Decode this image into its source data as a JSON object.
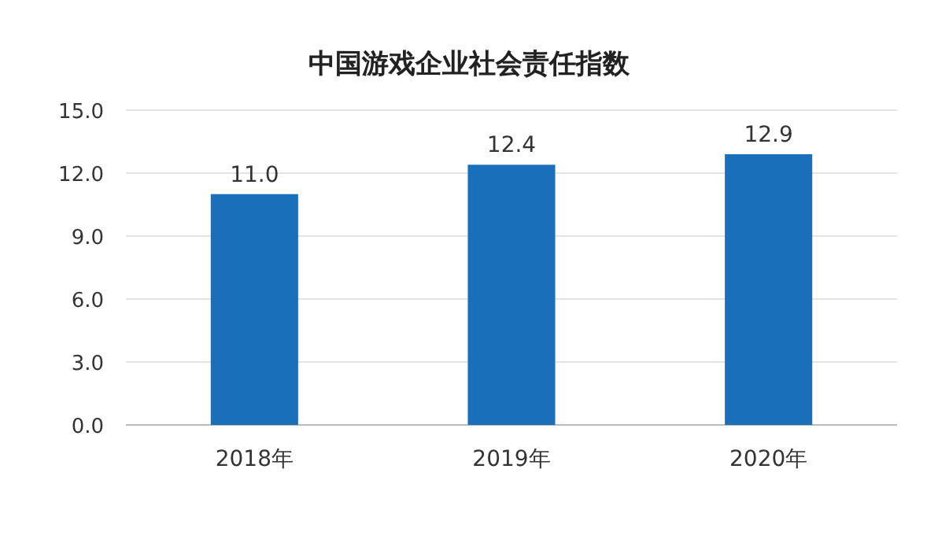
{
  "chart_data": {
    "type": "bar",
    "title": "中国游戏企业社会责任指数",
    "categories": [
      "2018年",
      "2019年",
      "2020年"
    ],
    "values": [
      11.0,
      12.4,
      12.9
    ],
    "value_labels": [
      "11.0",
      "12.4",
      "12.9"
    ],
    "color": "#1a6fbb",
    "ylim": [
      0,
      15
    ],
    "yticks": [
      {
        "value": 0,
        "label": "0.0"
      },
      {
        "value": 3,
        "label": "3.0"
      },
      {
        "value": 6,
        "label": "6.0"
      },
      {
        "value": 9,
        "label": "9.0"
      },
      {
        "value": 12,
        "label": "12.0"
      },
      {
        "value": 15,
        "label": "15.0"
      }
    ],
    "grid": "y"
  }
}
